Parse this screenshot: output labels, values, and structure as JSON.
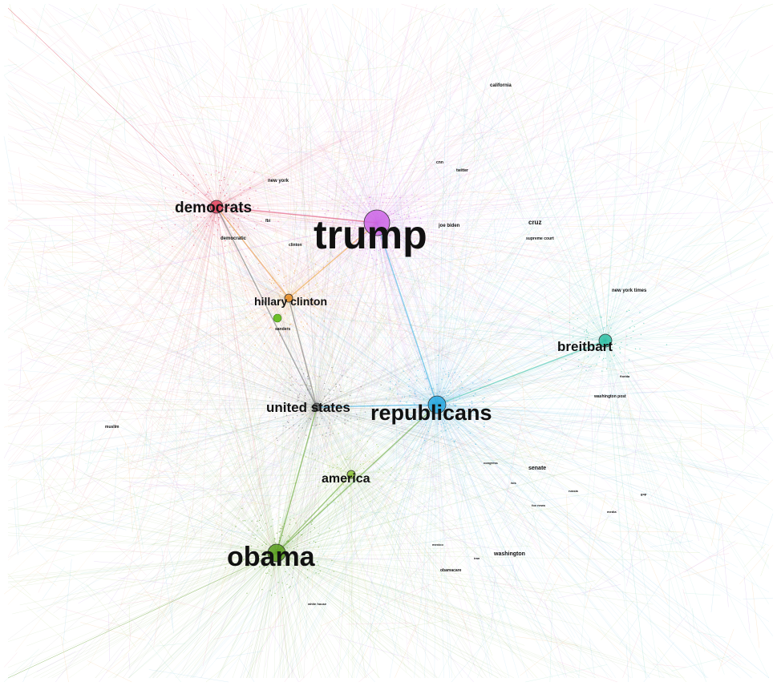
{
  "hubs": [
    {
      "id": "trump",
      "label": "trump",
      "color": "#cc66e6",
      "size": "xl"
    },
    {
      "id": "democrats",
      "label": "democrats",
      "color": "#e0445e",
      "size": "md"
    },
    {
      "id": "hillary-clinton",
      "label": "hillary clinton",
      "color": "#e8912a",
      "size": "sm"
    },
    {
      "id": "united-states",
      "label": "united states",
      "color": "#666666",
      "size": "sm"
    },
    {
      "id": "republicans",
      "label": "republicans",
      "color": "#29a8e0",
      "size": "lg"
    },
    {
      "id": "america",
      "label": "america",
      "color": "#8fc33b",
      "size": "sm"
    },
    {
      "id": "obama",
      "label": "obama",
      "color": "#5a9e20",
      "size": "lg"
    },
    {
      "id": "breitbart",
      "label": "breitbart",
      "color": "#2fbfa4",
      "size": "md"
    }
  ],
  "minor_labels": [
    {
      "id": "california",
      "label": "california"
    },
    {
      "id": "new-york",
      "label": "new york"
    },
    {
      "id": "joe-biden",
      "label": "joe biden"
    },
    {
      "id": "cruz",
      "label": "cruz"
    },
    {
      "id": "supreme-court",
      "label": "supreme court"
    },
    {
      "id": "new-york-times",
      "label": "new york times"
    },
    {
      "id": "democratic",
      "label": "democratic"
    },
    {
      "id": "clinton",
      "label": "clinton"
    },
    {
      "id": "sanders",
      "label": "sanders"
    },
    {
      "id": "cnn",
      "label": "cnn"
    },
    {
      "id": "twitter",
      "label": "twitter"
    },
    {
      "id": "fbi",
      "label": "fbi"
    },
    {
      "id": "muslim",
      "label": "muslim"
    },
    {
      "id": "washington-post",
      "label": "washington post"
    },
    {
      "id": "senate",
      "label": "senate"
    },
    {
      "id": "washington",
      "label": "washington"
    },
    {
      "id": "obamacare",
      "label": "obamacare"
    },
    {
      "id": "congress",
      "label": "congress"
    },
    {
      "id": "florida",
      "label": "florida"
    },
    {
      "id": "mexico",
      "label": "mexico"
    },
    {
      "id": "russia",
      "label": "russia"
    },
    {
      "id": "gop",
      "label": "gop"
    },
    {
      "id": "iran",
      "label": "iran"
    },
    {
      "id": "isis",
      "label": "isis"
    },
    {
      "id": "fox-news",
      "label": "fox news"
    },
    {
      "id": "media",
      "label": "media"
    },
    {
      "id": "white-house",
      "label": "white house"
    }
  ],
  "hub_links": [
    [
      "trump",
      "republicans"
    ],
    [
      "trump",
      "democrats"
    ],
    [
      "democrats",
      "united-states"
    ],
    [
      "democrats",
      "hillary-clinton"
    ],
    [
      "hillary-clinton",
      "united-states"
    ],
    [
      "united-states",
      "republicans"
    ],
    [
      "united-states",
      "obama"
    ],
    [
      "america",
      "obama"
    ],
    [
      "republicans",
      "obama"
    ],
    [
      "republicans",
      "breitbart"
    ],
    [
      "trump",
      "hillary-clinton"
    ]
  ]
}
